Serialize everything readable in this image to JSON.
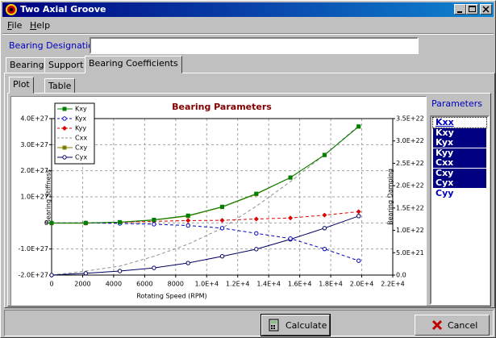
{
  "window": {
    "title": "Two Axial Groove"
  },
  "menu": [
    "File",
    "Help"
  ],
  "designation": {
    "label": "Bearing Designation",
    "value": ""
  },
  "tabs": [
    "Bearing",
    "Support",
    "Bearing Coefficients"
  ],
  "subtabs": [
    "Plot",
    "Table"
  ],
  "parameters": {
    "title": "Parameters",
    "items": [
      {
        "label": "Kxx",
        "selected": false
      },
      {
        "label": "Kxy",
        "selected": true
      },
      {
        "label": "Kyx",
        "selected": true
      },
      {
        "label": "Kyy",
        "selected": true
      },
      {
        "label": "Cxx",
        "selected": true
      },
      {
        "label": "Cxy",
        "selected": true
      },
      {
        "label": "Cyx",
        "selected": true
      },
      {
        "label": "Cyy",
        "selected": false
      }
    ]
  },
  "buttons": [
    "Calculate",
    "Cancel"
  ],
  "chart_data": {
    "type": "line",
    "title": "Bearing Parameters",
    "x_label": "Rotating Speed (RPM)",
    "y_label": "Bearing Stiffness",
    "y2_label": "Bearing Damping",
    "x": [
      0,
      2200,
      4400,
      6600,
      8800,
      11000,
      13200,
      15400,
      17600,
      19800
    ],
    "xlim": [
      0,
      22000
    ],
    "xticks": [
      0,
      2000,
      4000,
      6000,
      8000,
      {
        "value": 10000,
        "label": "1.0E+4"
      },
      {
        "value": 12000,
        "label": "1.2E+4"
      },
      {
        "value": 14000,
        "label": "1.4E+4"
      },
      {
        "value": 16000,
        "label": "1.6E+4"
      },
      {
        "value": 18000,
        "label": "1.8E+4"
      },
      {
        "value": 20000,
        "label": "2.0E+4"
      },
      {
        "value": 22000,
        "label": "2.2E+4"
      }
    ],
    "ylim": [
      -2e+27,
      4e+27
    ],
    "yticks": [
      {
        "value": -2e+27,
        "label": "-2.0E+27"
      },
      {
        "value": -1e+27,
        "label": "-1.0E+27"
      },
      0,
      {
        "value": 1e+27,
        "label": "1.0E+27"
      },
      {
        "value": 2e+27,
        "label": "2.0E+27"
      },
      {
        "value": 3e+27,
        "label": "3.0E+27"
      },
      {
        "value": 4e+27,
        "label": "4.0E+27"
      }
    ],
    "y2lim": [
      0,
      3.5e+22
    ],
    "y2ticks": [
      {
        "value": 0,
        "label": "0.0"
      },
      {
        "value": 5e+21,
        "label": "5.0E+21"
      },
      {
        "value": 1e+22,
        "label": "1.0E+22"
      },
      {
        "value": 1.5e+22,
        "label": "1.5E+22"
      },
      {
        "value": 2e+22,
        "label": "2.0E+22"
      },
      {
        "value": 2.5e+22,
        "label": "2.5E+22"
      },
      {
        "value": 3e+22,
        "label": "3.0E+22"
      },
      {
        "value": 3.5e+22,
        "label": "3.5E+22"
      }
    ],
    "grid": true,
    "legend": "top-left",
    "series": [
      {
        "name": "Kxy",
        "color": "#008000",
        "marker": "square",
        "dash": false,
        "axis": "y",
        "values": [
          0,
          0,
          3e+25,
          1.2e+26,
          2.8e+26,
          6.2e+26,
          1.12e+27,
          1.74e+27,
          2.6e+27,
          3.7e+27
        ]
      },
      {
        "name": "Kyx",
        "color": "#0000c0",
        "marker": "circle",
        "dash": true,
        "axis": "y",
        "values": [
          0,
          0,
          -2e+25,
          -5e+25,
          -1e+26,
          -2e+26,
          -4e+26,
          -6e+26,
          -1e+27,
          -1.45e+27
        ]
      },
      {
        "name": "Kyy",
        "color": "#e00000",
        "marker": "diamond",
        "dash": true,
        "axis": "y",
        "values": [
          0,
          0,
          2e+25,
          6e+25,
          9e+25,
          1e+26,
          1.5e+26,
          1.9e+26,
          3e+26,
          4.3e+26
        ]
      },
      {
        "name": "Cxx",
        "color": "#909090",
        "marker": "none",
        "dash": true,
        "axis": "y2",
        "values": [
          0,
          9e+20,
          2e+21,
          4.2e+21,
          6.9e+21,
          1.05e+22,
          1.54e+22,
          2.09e+22,
          2.69e+22,
          3.34e+22
        ]
      },
      {
        "name": "Cxy",
        "color": "#808000",
        "marker": "square",
        "dash": false,
        "axis": "y2",
        "values": [
          1.16e+22,
          1.16e+22,
          1.18e+22,
          1.23e+22,
          1.32e+22,
          1.52e+22,
          1.81e+22,
          2.18e+22,
          2.69e+22,
          3.32e+22
        ]
      },
      {
        "name": "Cyx",
        "color": "#000060",
        "marker": "circle",
        "dash": false,
        "axis": "y2",
        "values": [
          0,
          4e+20,
          9e+20,
          1.6e+21,
          2.7e+21,
          4.2e+21,
          5.8e+21,
          8e+21,
          1.05e+22,
          1.32e+22
        ]
      }
    ]
  }
}
